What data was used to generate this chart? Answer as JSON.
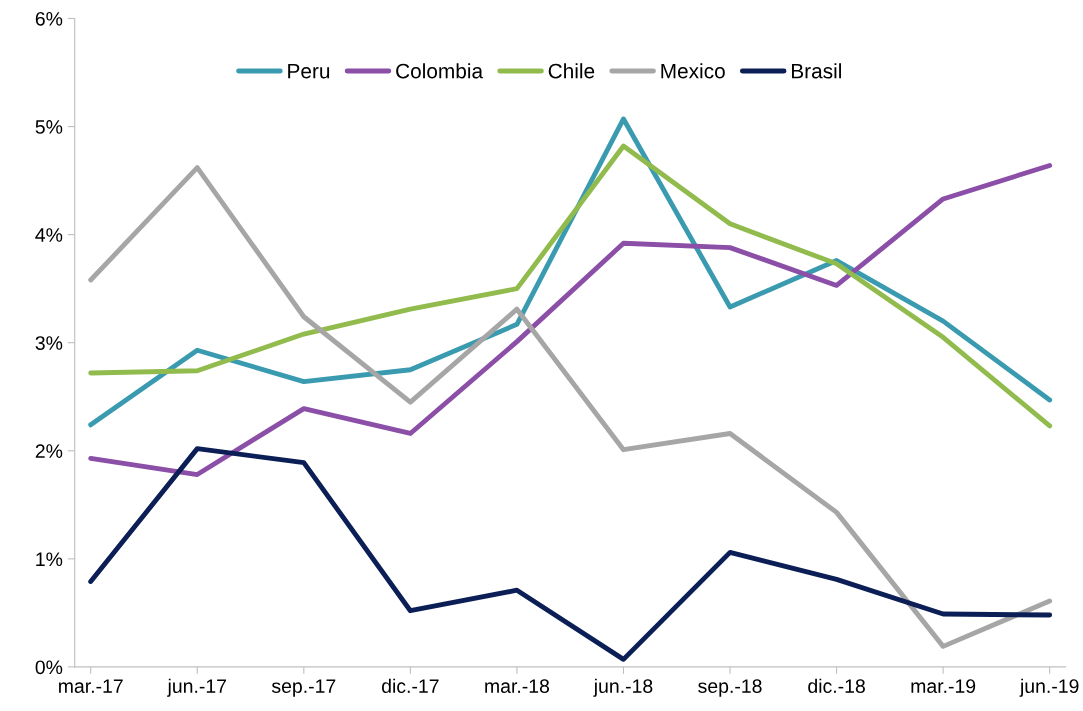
{
  "chart_data": {
    "type": "line",
    "categories": [
      "mar.-17",
      "jun.-17",
      "sep.-17",
      "dic.-17",
      "mar.-18",
      "jun.-18",
      "sep.-18",
      "dic.-18",
      "mar.-19",
      "jun.-19"
    ],
    "series": [
      {
        "name": "Peru",
        "color": "#3a9bb0",
        "values": [
          2.24,
          2.93,
          2.64,
          2.75,
          3.17,
          5.07,
          3.33,
          3.76,
          3.2,
          2.47
        ]
      },
      {
        "name": "Colombia",
        "color": "#8b4fa8",
        "values": [
          1.93,
          1.78,
          2.39,
          2.16,
          3.01,
          3.92,
          3.88,
          3.53,
          4.33,
          4.64
        ]
      },
      {
        "name": "Chile",
        "color": "#92bb4e",
        "values": [
          2.72,
          2.74,
          3.08,
          3.31,
          3.5,
          4.82,
          4.1,
          3.73,
          3.05,
          2.23
        ]
      },
      {
        "name": "Mexico",
        "color": "#a6a6a6",
        "values": [
          3.58,
          4.62,
          3.24,
          2.45,
          3.31,
          2.01,
          2.16,
          1.43,
          0.19,
          0.61
        ]
      },
      {
        "name": "Brasil",
        "color": "#0b1f56",
        "values": [
          0.79,
          2.02,
          1.89,
          0.52,
          0.71,
          0.07,
          1.06,
          0.81,
          0.49,
          0.48
        ]
      }
    ],
    "ylim": [
      0,
      6
    ],
    "yticks": [
      {
        "value": 0,
        "label": "0%"
      },
      {
        "value": 1,
        "label": "1%"
      },
      {
        "value": 2,
        "label": "2%"
      },
      {
        "value": 3,
        "label": "3%"
      },
      {
        "value": 4,
        "label": "4%"
      },
      {
        "value": 5,
        "label": "5%"
      },
      {
        "value": 6,
        "label": "6%"
      }
    ],
    "grid": false,
    "legend": "top",
    "marker": "none",
    "line_style": "solid"
  }
}
